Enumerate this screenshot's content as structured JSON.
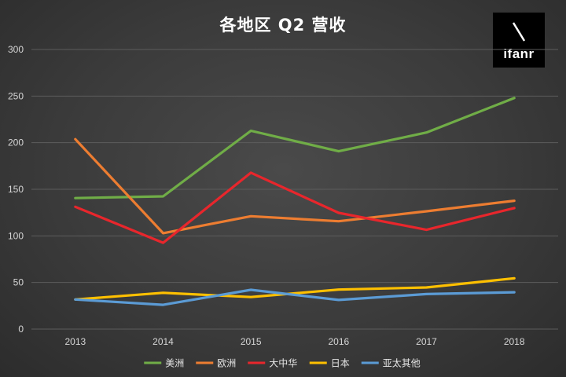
{
  "colors": {
    "background": "#3b3b3b",
    "grid": "#5c5c5c",
    "text": "#d6d6d6"
  },
  "logo": {
    "text": "ifanr"
  },
  "chart_data": {
    "type": "line",
    "title": "各地区 Q2 营收",
    "xlabel": "",
    "ylabel": "",
    "categories": [
      "2013",
      "2014",
      "2015",
      "2016",
      "2017",
      "2018"
    ],
    "ylim": [
      0,
      300
    ],
    "yticks": [
      0,
      50,
      100,
      150,
      200,
      250,
      300
    ],
    "grid": true,
    "legend_position": "bottom",
    "series": [
      {
        "name": "美洲",
        "color": "#70ad47",
        "values": [
          140.6,
          142.4,
          212.8,
          190.8,
          210.9,
          247.9
        ]
      },
      {
        "name": "欧洲",
        "color": "#ed7d31",
        "values": [
          203.8,
          102.9,
          121.1,
          115.7,
          126.4,
          137.7
        ]
      },
      {
        "name": "大中华",
        "color": "#e8262c",
        "values": [
          131.2,
          92.6,
          167.8,
          124.7,
          106.5,
          129.9
        ]
      },
      {
        "name": "日本",
        "color": "#ffc000",
        "values": [
          31.8,
          38.9,
          34.4,
          42.4,
          44.7,
          54.5
        ]
      },
      {
        "name": "亚太其他",
        "color": "#5b9bd5",
        "values": [
          31.8,
          26.0,
          42.1,
          31.3,
          37.6,
          39.5
        ]
      }
    ]
  }
}
